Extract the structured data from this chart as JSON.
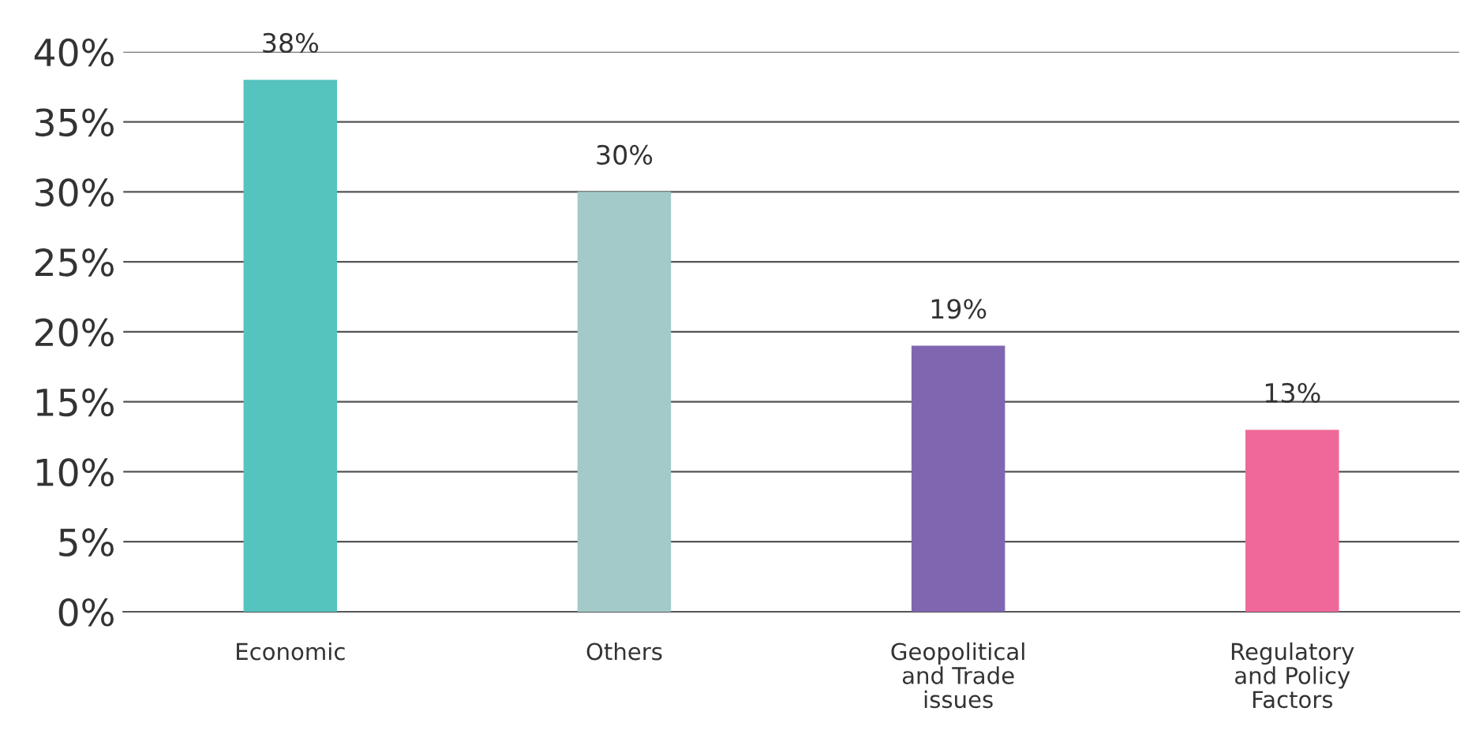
{
  "chart_data": {
    "type": "bar",
    "categories": [
      "Economic",
      "Others",
      "Geopolitical\nand Trade\nissues",
      "Regulatory\nand Policy\nFactors"
    ],
    "values": [
      38,
      30,
      19,
      13
    ],
    "colors": [
      "#55c3be",
      "#a3cac9",
      "#8066b0",
      "#ef6899"
    ],
    "value_labels": [
      "38%",
      "30%",
      "19%",
      "13%"
    ],
    "ylim": [
      0,
      40
    ],
    "yticks": [
      {
        "value": 0,
        "label": "0%"
      },
      {
        "value": 5,
        "label": "5%"
      },
      {
        "value": 10,
        "label": "10%"
      },
      {
        "value": 15,
        "label": "15%"
      },
      {
        "value": 20,
        "label": "20%"
      },
      {
        "value": 25,
        "label": "25%"
      },
      {
        "value": 30,
        "label": "30%"
      },
      {
        "value": 35,
        "label": "35%"
      },
      {
        "value": 40,
        "label": "40%"
      }
    ],
    "grid": "y",
    "legend": false
  }
}
